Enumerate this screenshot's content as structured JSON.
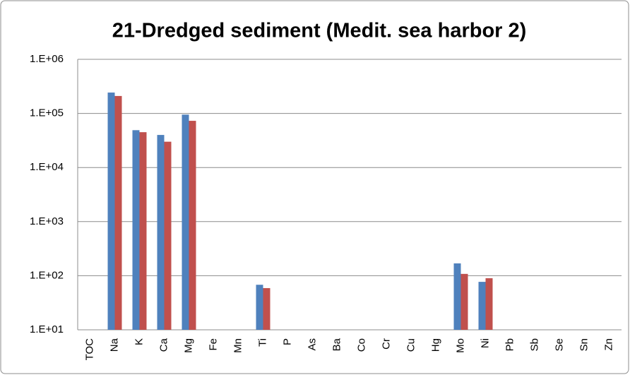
{
  "chart_data": {
    "type": "bar",
    "title": "21-Dredged sediment (Medit. sea harbor 2)",
    "categories": [
      "TOC",
      "Na",
      "K",
      "Ca",
      "Mg",
      "Fe",
      "Mn",
      "Ti",
      "P",
      "As",
      "Ba",
      "Co",
      "Cr",
      "Cu",
      "Hg",
      "Mo",
      "Ni",
      "Pb",
      "Sb",
      "Se",
      "Sn",
      "Zn"
    ],
    "series": [
      {
        "color": "#4f81bd",
        "values": [
          null,
          243000,
          49000,
          40000,
          95000,
          null,
          null,
          68,
          null,
          null,
          null,
          null,
          null,
          null,
          null,
          169,
          77,
          null,
          null,
          null,
          null,
          null
        ]
      },
      {
        "color": "#c0504d",
        "values": [
          null,
          210000,
          45000,
          30000,
          73000,
          null,
          null,
          59,
          null,
          null,
          null,
          null,
          null,
          null,
          null,
          108,
          90,
          null,
          null,
          null,
          null,
          null
        ]
      }
    ],
    "log_scale": true,
    "ylim": [
      10,
      1000000
    ],
    "yticks": [
      {
        "value": 10,
        "label": "1.E+01"
      },
      {
        "value": 100,
        "label": "1.E+02"
      },
      {
        "value": 1000,
        "label": "1.E+03"
      },
      {
        "value": 10000,
        "label": "1.E+04"
      },
      {
        "value": 100000,
        "label": "1.E+05"
      },
      {
        "value": 1000000,
        "label": "1.E+06"
      }
    ],
    "grid": true
  }
}
